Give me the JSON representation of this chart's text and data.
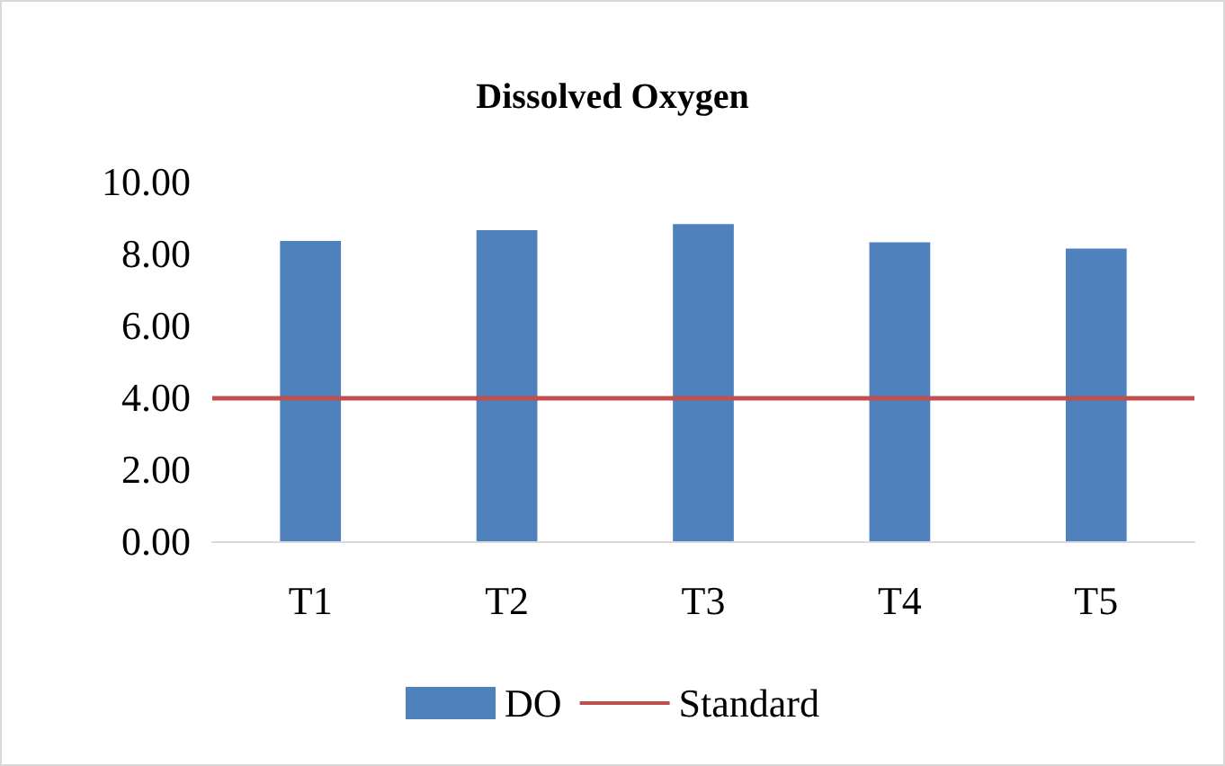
{
  "chart_data": {
    "type": "bar",
    "title": "Dissolved Oxygen",
    "categories": [
      "T1",
      "T2",
      "T3",
      "T4",
      "T5"
    ],
    "series": [
      {
        "name": "DO",
        "color": "#4f81bd",
        "values": [
          8.35,
          8.65,
          8.82,
          8.31,
          8.14
        ]
      }
    ],
    "ref_lines": [
      {
        "axis": "y",
        "value": 4,
        "label": "Standard",
        "color": "#c0504d",
        "line_style": "solid"
      }
    ],
    "ylim": [
      0,
      10
    ],
    "yticks": [
      {
        "value": 0,
        "label": "0.00"
      },
      {
        "value": 2,
        "label": "2.00"
      },
      {
        "value": 4,
        "label": "4.00"
      },
      {
        "value": 6,
        "label": "6.00"
      },
      {
        "value": 8,
        "label": "8.00"
      },
      {
        "value": 10,
        "label": "10.00"
      }
    ],
    "grid": false,
    "legend": "bottom"
  }
}
